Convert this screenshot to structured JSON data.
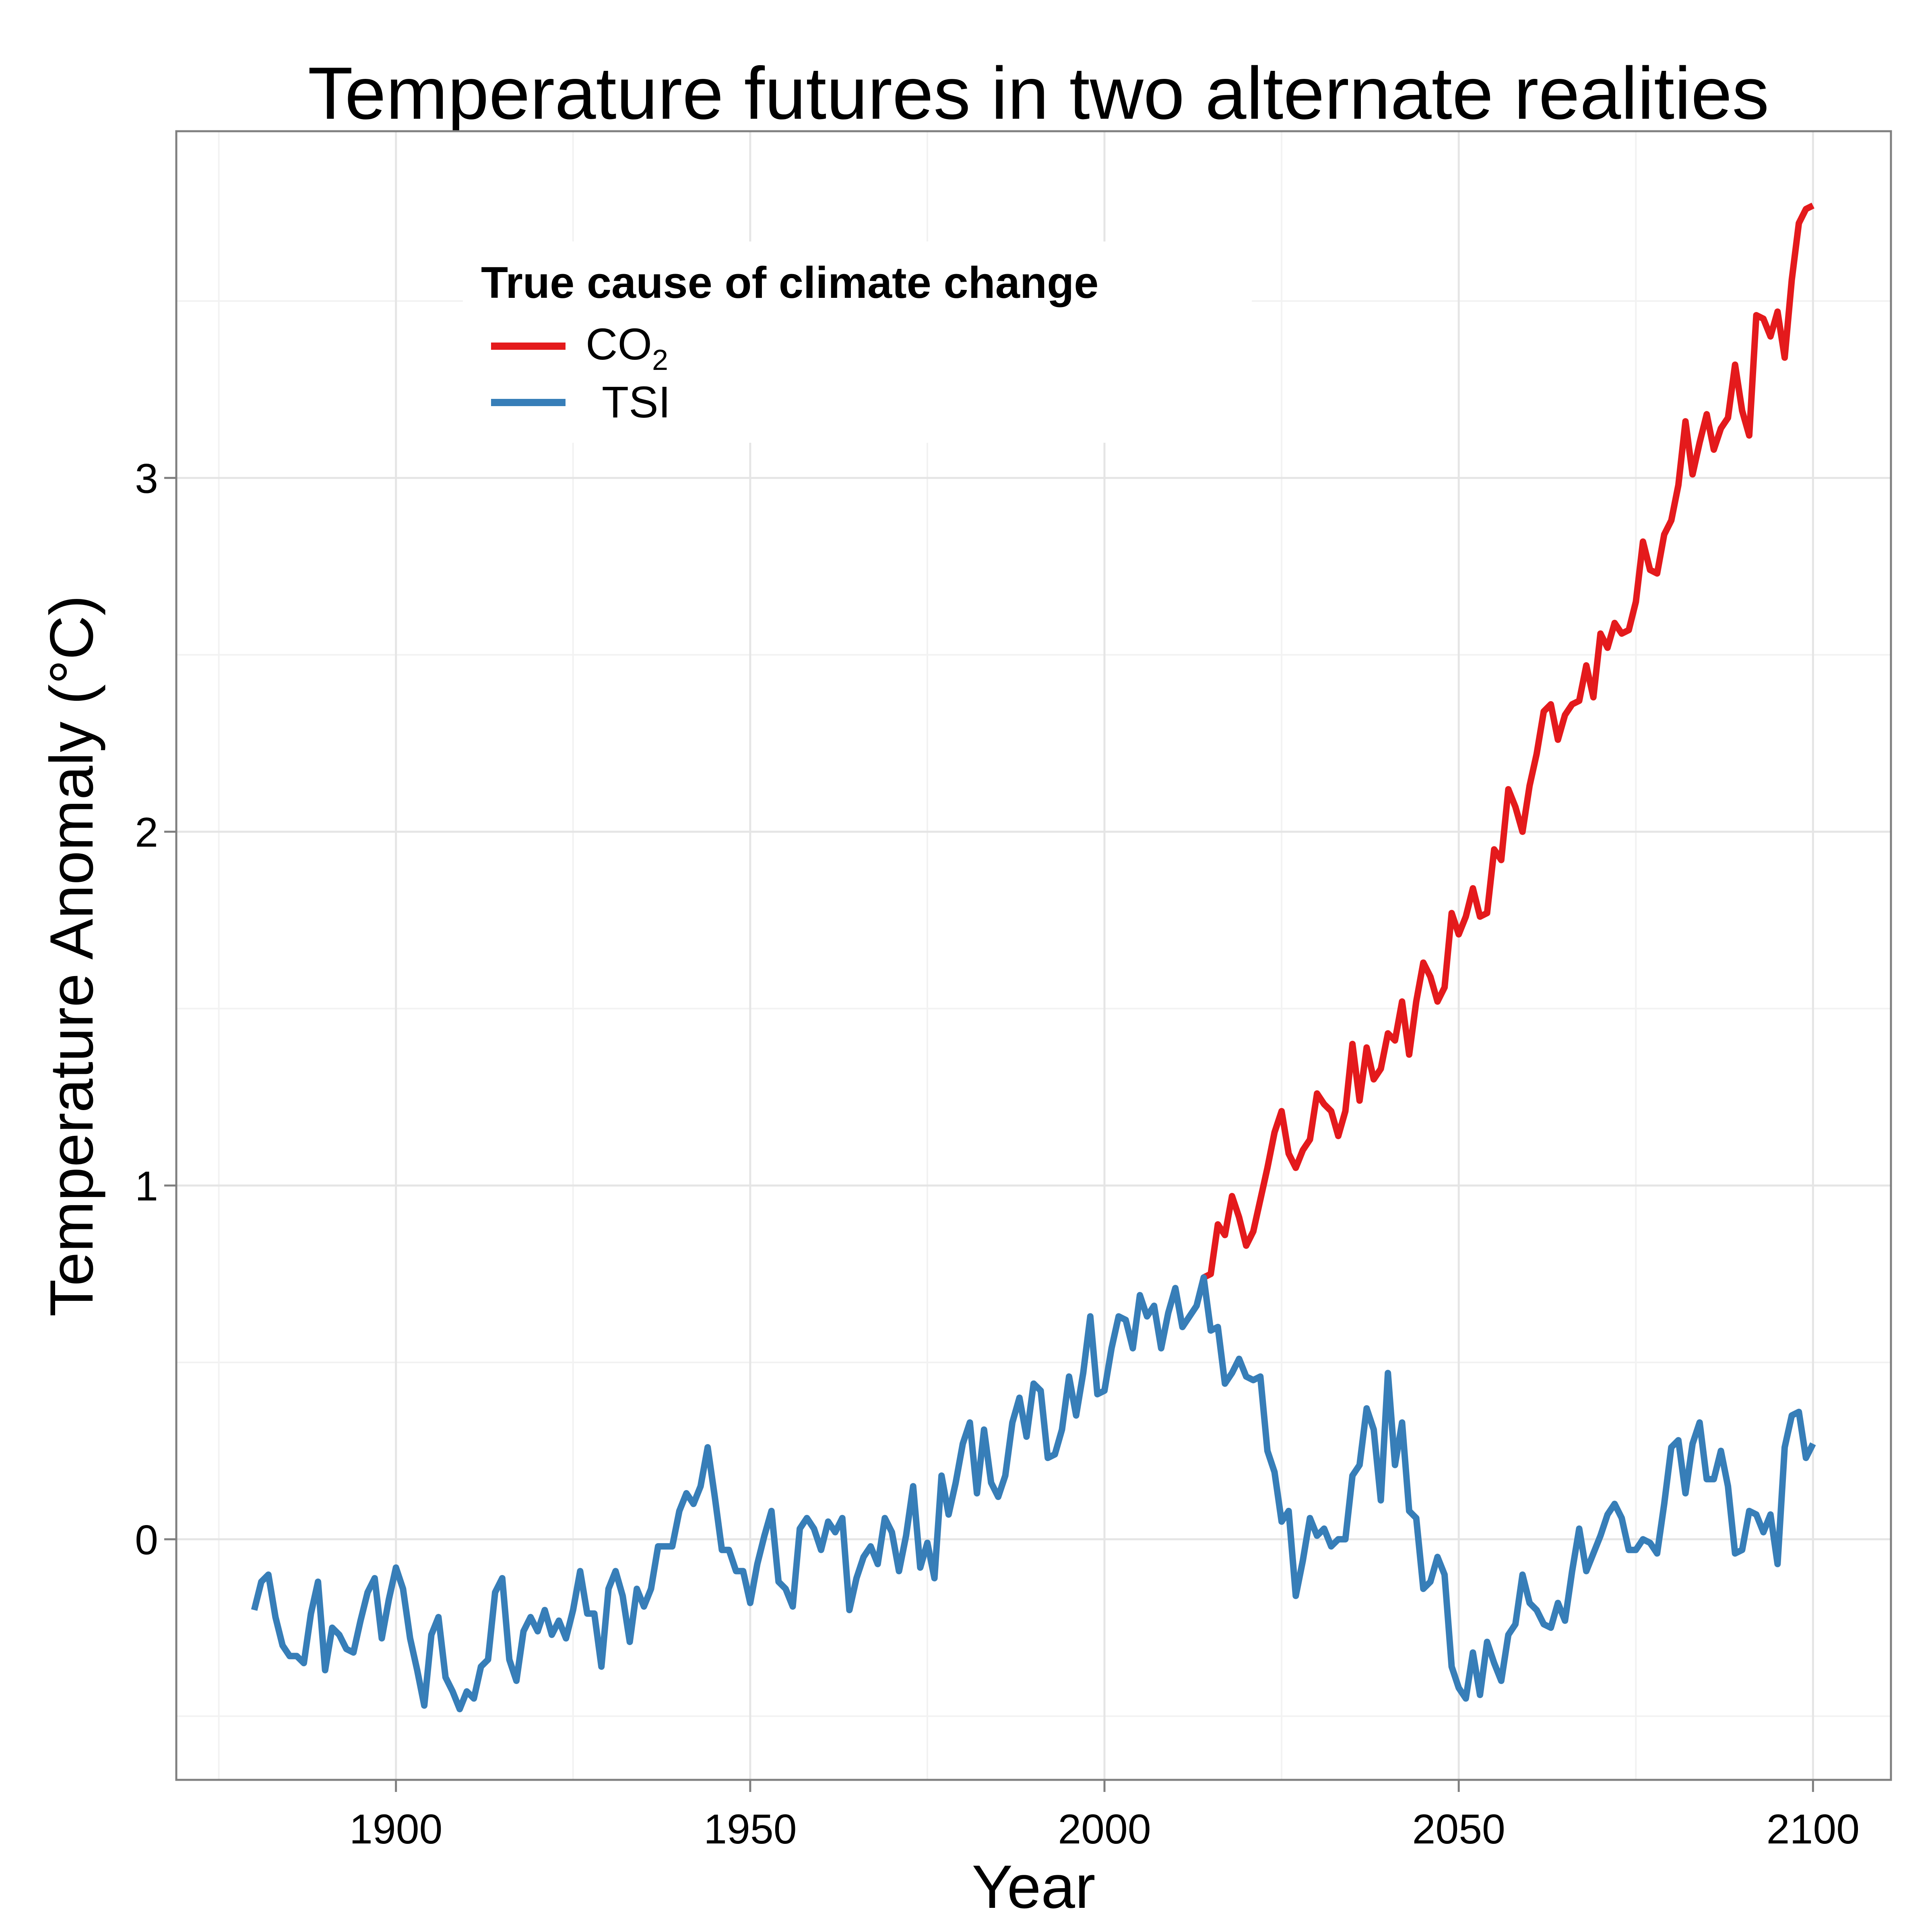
{
  "chart_data": {
    "type": "line",
    "title": "Temperature futures in two alternate realities",
    "xlabel": "Year",
    "ylabel": "Temperature Anomaly  (°C)",
    "xlim": [
      1869,
      2111
    ],
    "ylim": [
      -0.68,
      3.98
    ],
    "x_ticks": [
      1900,
      1950,
      2000,
      2050,
      2100
    ],
    "y_ticks": [
      0,
      1,
      2,
      3
    ],
    "grid": true,
    "legend": {
      "title": "True cause of climate change",
      "placement": "top-left",
      "entries": [
        {
          "label": "CO",
          "subscript": "2",
          "color": "#E41A1C"
        },
        {
          "label": "TSI",
          "subscript": "",
          "color": "#377EB8"
        }
      ]
    },
    "series": [
      {
        "name": "CO2",
        "color": "#E41A1C",
        "points": [
          [
            2014,
            0.74
          ],
          [
            2015,
            0.75
          ],
          [
            2016,
            0.89
          ],
          [
            2017,
            0.86
          ],
          [
            2018,
            0.97
          ],
          [
            2019,
            0.91
          ],
          [
            2020,
            0.83
          ],
          [
            2021,
            0.87
          ],
          [
            2022,
            0.96
          ],
          [
            2023,
            1.05
          ],
          [
            2024,
            1.15
          ],
          [
            2025,
            1.21
          ],
          [
            2026,
            1.09
          ],
          [
            2027,
            1.05
          ],
          [
            2028,
            1.1
          ],
          [
            2029,
            1.13
          ],
          [
            2030,
            1.26
          ],
          [
            2031,
            1.23
          ],
          [
            2032,
            1.21
          ],
          [
            2033,
            1.14
          ],
          [
            2034,
            1.21
          ],
          [
            2035,
            1.4
          ],
          [
            2036,
            1.24
          ],
          [
            2037,
            1.39
          ],
          [
            2038,
            1.3
          ],
          [
            2039,
            1.33
          ],
          [
            2040,
            1.43
          ],
          [
            2041,
            1.41
          ],
          [
            2042,
            1.52
          ],
          [
            2043,
            1.37
          ],
          [
            2044,
            1.52
          ],
          [
            2045,
            1.63
          ],
          [
            2046,
            1.59
          ],
          [
            2047,
            1.52
          ],
          [
            2048,
            1.56
          ],
          [
            2049,
            1.77
          ],
          [
            2050,
            1.71
          ],
          [
            2051,
            1.76
          ],
          [
            2052,
            1.84
          ],
          [
            2053,
            1.76
          ],
          [
            2054,
            1.77
          ],
          [
            2055,
            1.95
          ],
          [
            2056,
            1.92
          ],
          [
            2057,
            2.12
          ],
          [
            2058,
            2.07
          ],
          [
            2059,
            2.0
          ],
          [
            2060,
            2.13
          ],
          [
            2061,
            2.22
          ],
          [
            2062,
            2.34
          ],
          [
            2063,
            2.36
          ],
          [
            2064,
            2.26
          ],
          [
            2065,
            2.33
          ],
          [
            2066,
            2.36
          ],
          [
            2067,
            2.37
          ],
          [
            2068,
            2.47
          ],
          [
            2069,
            2.38
          ],
          [
            2070,
            2.56
          ],
          [
            2071,
            2.52
          ],
          [
            2072,
            2.59
          ],
          [
            2073,
            2.56
          ],
          [
            2074,
            2.57
          ],
          [
            2075,
            2.65
          ],
          [
            2076,
            2.82
          ],
          [
            2077,
            2.74
          ],
          [
            2078,
            2.73
          ],
          [
            2079,
            2.84
          ],
          [
            2080,
            2.88
          ],
          [
            2081,
            2.98
          ],
          [
            2082,
            3.16
          ],
          [
            2083,
            3.01
          ],
          [
            2084,
            3.1
          ],
          [
            2085,
            3.18
          ],
          [
            2086,
            3.08
          ],
          [
            2087,
            3.14
          ],
          [
            2088,
            3.17
          ],
          [
            2089,
            3.32
          ],
          [
            2090,
            3.19
          ],
          [
            2091,
            3.12
          ],
          [
            2092,
            3.46
          ],
          [
            2093,
            3.45
          ],
          [
            2094,
            3.4
          ],
          [
            2095,
            3.47
          ],
          [
            2096,
            3.34
          ],
          [
            2097,
            3.56
          ],
          [
            2098,
            3.72
          ],
          [
            2099,
            3.76
          ],
          [
            2100,
            3.77
          ]
        ]
      },
      {
        "name": "TSI",
        "color": "#377EB8",
        "points": [
          [
            1880,
            -0.2
          ],
          [
            1881,
            -0.12
          ],
          [
            1882,
            -0.1
          ],
          [
            1883,
            -0.22
          ],
          [
            1884,
            -0.3
          ],
          [
            1885,
            -0.33
          ],
          [
            1886,
            -0.33
          ],
          [
            1887,
            -0.35
          ],
          [
            1888,
            -0.21
          ],
          [
            1889,
            -0.12
          ],
          [
            1890,
            -0.37
          ],
          [
            1891,
            -0.25
          ],
          [
            1892,
            -0.27
          ],
          [
            1893,
            -0.31
          ],
          [
            1894,
            -0.32
          ],
          [
            1895,
            -0.23
          ],
          [
            1896,
            -0.15
          ],
          [
            1897,
            -0.11
          ],
          [
            1898,
            -0.28
          ],
          [
            1899,
            -0.17
          ],
          [
            1900,
            -0.08
          ],
          [
            1901,
            -0.14
          ],
          [
            1902,
            -0.28
          ],
          [
            1903,
            -0.37
          ],
          [
            1904,
            -0.47
          ],
          [
            1905,
            -0.27
          ],
          [
            1906,
            -0.22
          ],
          [
            1907,
            -0.39
          ],
          [
            1908,
            -0.43
          ],
          [
            1909,
            -0.48
          ],
          [
            1910,
            -0.43
          ],
          [
            1911,
            -0.45
          ],
          [
            1912,
            -0.36
          ],
          [
            1913,
            -0.34
          ],
          [
            1914,
            -0.15
          ],
          [
            1915,
            -0.11
          ],
          [
            1916,
            -0.34
          ],
          [
            1917,
            -0.4
          ],
          [
            1918,
            -0.26
          ],
          [
            1919,
            -0.22
          ],
          [
            1920,
            -0.26
          ],
          [
            1921,
            -0.2
          ],
          [
            1922,
            -0.27
          ],
          [
            1923,
            -0.23
          ],
          [
            1924,
            -0.28
          ],
          [
            1925,
            -0.2
          ],
          [
            1926,
            -0.09
          ],
          [
            1927,
            -0.21
          ],
          [
            1928,
            -0.21
          ],
          [
            1929,
            -0.36
          ],
          [
            1930,
            -0.14
          ],
          [
            1931,
            -0.09
          ],
          [
            1932,
            -0.16
          ],
          [
            1933,
            -0.29
          ],
          [
            1934,
            -0.14
          ],
          [
            1935,
            -0.19
          ],
          [
            1936,
            -0.14
          ],
          [
            1937,
            -0.02
          ],
          [
            1938,
            -0.02
          ],
          [
            1939,
            -0.02
          ],
          [
            1940,
            0.08
          ],
          [
            1941,
            0.13
          ],
          [
            1942,
            0.1
          ],
          [
            1943,
            0.15
          ],
          [
            1944,
            0.26
          ],
          [
            1945,
            0.12
          ],
          [
            1946,
            -0.03
          ],
          [
            1947,
            -0.03
          ],
          [
            1948,
            -0.09
          ],
          [
            1949,
            -0.09
          ],
          [
            1950,
            -0.18
          ],
          [
            1951,
            -0.07
          ],
          [
            1952,
            0.01
          ],
          [
            1953,
            0.08
          ],
          [
            1954,
            -0.12
          ],
          [
            1955,
            -0.14
          ],
          [
            1956,
            -0.19
          ],
          [
            1957,
            0.03
          ],
          [
            1958,
            0.06
          ],
          [
            1959,
            0.03
          ],
          [
            1960,
            -0.03
          ],
          [
            1961,
            0.05
          ],
          [
            1962,
            0.02
          ],
          [
            1963,
            0.06
          ],
          [
            1964,
            -0.2
          ],
          [
            1965,
            -0.11
          ],
          [
            1966,
            -0.05
          ],
          [
            1967,
            -0.02
          ],
          [
            1968,
            -0.07
          ],
          [
            1969,
            0.06
          ],
          [
            1970,
            0.02
          ],
          [
            1971,
            -0.09
          ],
          [
            1972,
            0.01
          ],
          [
            1973,
            0.15
          ],
          [
            1974,
            -0.08
          ],
          [
            1975,
            -0.01
          ],
          [
            1976,
            -0.11
          ],
          [
            1977,
            0.18
          ],
          [
            1978,
            0.07
          ],
          [
            1979,
            0.16
          ],
          [
            1980,
            0.27
          ],
          [
            1981,
            0.33
          ],
          [
            1982,
            0.13
          ],
          [
            1983,
            0.31
          ],
          [
            1984,
            0.16
          ],
          [
            1985,
            0.12
          ],
          [
            1986,
            0.18
          ],
          [
            1987,
            0.33
          ],
          [
            1988,
            0.4
          ],
          [
            1989,
            0.29
          ],
          [
            1990,
            0.44
          ],
          [
            1991,
            0.42
          ],
          [
            1992,
            0.23
          ],
          [
            1993,
            0.24
          ],
          [
            1994,
            0.31
          ],
          [
            1995,
            0.46
          ],
          [
            1996,
            0.35
          ],
          [
            1997,
            0.47
          ],
          [
            1998,
            0.63
          ],
          [
            1999,
            0.41
          ],
          [
            2000,
            0.42
          ],
          [
            2001,
            0.54
          ],
          [
            2002,
            0.63
          ],
          [
            2003,
            0.62
          ],
          [
            2004,
            0.54
          ],
          [
            2005,
            0.69
          ],
          [
            2006,
            0.63
          ],
          [
            2007,
            0.66
          ],
          [
            2008,
            0.54
          ],
          [
            2009,
            0.64
          ],
          [
            2010,
            0.71
          ],
          [
            2011,
            0.6
          ],
          [
            2012,
            0.63
          ],
          [
            2013,
            0.66
          ],
          [
            2014,
            0.74
          ],
          [
            2015,
            0.59
          ],
          [
            2016,
            0.6
          ],
          [
            2017,
            0.44
          ],
          [
            2018,
            0.47
          ],
          [
            2019,
            0.51
          ],
          [
            2020,
            0.46
          ],
          [
            2021,
            0.45
          ],
          [
            2022,
            0.46
          ],
          [
            2023,
            0.25
          ],
          [
            2024,
            0.19
          ],
          [
            2025,
            0.05
          ],
          [
            2026,
            0.08
          ],
          [
            2027,
            -0.16
          ],
          [
            2028,
            -0.06
          ],
          [
            2029,
            0.06
          ],
          [
            2030,
            0.01
          ],
          [
            2031,
            0.03
          ],
          [
            2032,
            -0.02
          ],
          [
            2033,
            0.0
          ],
          [
            2034,
            0.0
          ],
          [
            2035,
            0.18
          ],
          [
            2036,
            0.21
          ],
          [
            2037,
            0.37
          ],
          [
            2038,
            0.31
          ],
          [
            2039,
            0.11
          ],
          [
            2040,
            0.47
          ],
          [
            2041,
            0.21
          ],
          [
            2042,
            0.33
          ],
          [
            2043,
            0.08
          ],
          [
            2044,
            0.06
          ],
          [
            2045,
            -0.14
          ],
          [
            2046,
            -0.12
          ],
          [
            2047,
            -0.05
          ],
          [
            2048,
            -0.1
          ],
          [
            2049,
            -0.36
          ],
          [
            2050,
            -0.42
          ],
          [
            2051,
            -0.45
          ],
          [
            2052,
            -0.32
          ],
          [
            2053,
            -0.44
          ],
          [
            2054,
            -0.29
          ],
          [
            2055,
            -0.35
          ],
          [
            2056,
            -0.4
          ],
          [
            2057,
            -0.27
          ],
          [
            2058,
            -0.24
          ],
          [
            2059,
            -0.1
          ],
          [
            2060,
            -0.18
          ],
          [
            2061,
            -0.2
          ],
          [
            2062,
            -0.24
          ],
          [
            2063,
            -0.25
          ],
          [
            2064,
            -0.18
          ],
          [
            2065,
            -0.23
          ],
          [
            2066,
            -0.09
          ],
          [
            2067,
            0.03
          ],
          [
            2068,
            -0.09
          ],
          [
            2069,
            -0.04
          ],
          [
            2070,
            0.01
          ],
          [
            2071,
            0.07
          ],
          [
            2072,
            0.1
          ],
          [
            2073,
            0.06
          ],
          [
            2074,
            -0.03
          ],
          [
            2075,
            -0.03
          ],
          [
            2076,
            0.0
          ],
          [
            2077,
            -0.01
          ],
          [
            2078,
            -0.04
          ],
          [
            2079,
            0.1
          ],
          [
            2080,
            0.26
          ],
          [
            2081,
            0.28
          ],
          [
            2082,
            0.13
          ],
          [
            2083,
            0.27
          ],
          [
            2084,
            0.33
          ],
          [
            2085,
            0.17
          ],
          [
            2086,
            0.17
          ],
          [
            2087,
            0.25
          ],
          [
            2088,
            0.15
          ],
          [
            2089,
            -0.04
          ],
          [
            2090,
            -0.03
          ],
          [
            2091,
            0.08
          ],
          [
            2092,
            0.07
          ],
          [
            2093,
            0.02
          ],
          [
            2094,
            0.07
          ],
          [
            2095,
            -0.07
          ],
          [
            2096,
            0.26
          ],
          [
            2097,
            0.35
          ],
          [
            2098,
            0.36
          ],
          [
            2099,
            0.23
          ],
          [
            2100,
            0.27
          ]
        ]
      }
    ]
  }
}
